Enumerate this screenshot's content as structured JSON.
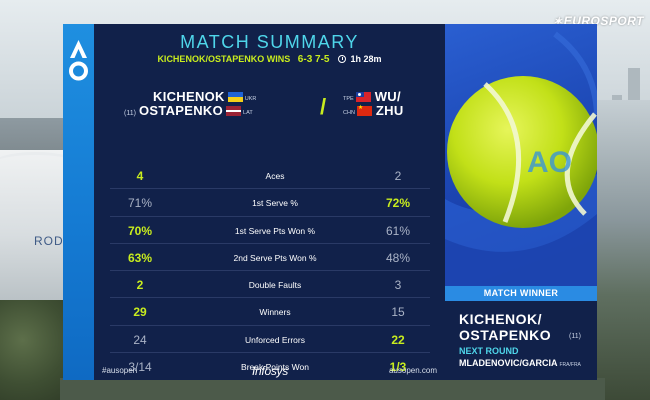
{
  "broadcaster": {
    "logo_text": "EUROSPORT"
  },
  "venue": {
    "arena_sign": "ROD"
  },
  "brand": {
    "event_logo": "AO"
  },
  "summary": {
    "title": "MATCH SUMMARY",
    "result_text": "KICHENOK/OSTAPENKO WINS",
    "score": "6-3  7-5",
    "duration": "1h 28m"
  },
  "teams": {
    "left": {
      "player1": {
        "name": "KICHENOK",
        "country": "UKR"
      },
      "player2": {
        "name": "OSTAPENKO",
        "country": "LAT",
        "seed": "(11)"
      }
    },
    "right": {
      "player1": {
        "name": "WU/",
        "country": "TPE"
      },
      "player2": {
        "name": "ZHU",
        "country": "CHN"
      }
    }
  },
  "stats": [
    {
      "label": "Aces",
      "left": "4",
      "right": "2",
      "winner": "left"
    },
    {
      "label": "1st Serve %",
      "left": "71%",
      "right": "72%",
      "winner": "right"
    },
    {
      "label": "1st Serve Pts Won %",
      "left": "70%",
      "right": "61%",
      "winner": "left"
    },
    {
      "label": "2nd Serve Pts Won %",
      "left": "63%",
      "right": "48%",
      "winner": "left"
    },
    {
      "label": "Double Faults",
      "left": "2",
      "right": "3",
      "winner": "left"
    },
    {
      "label": "Winners",
      "left": "29",
      "right": "15",
      "winner": "left"
    },
    {
      "label": "Unforced Errors",
      "left": "24",
      "right": "22",
      "winner": "right"
    },
    {
      "label": "Break Points Won",
      "left": "3/14",
      "right": "1/3",
      "winner": "right"
    }
  ],
  "footer": {
    "hashtag": "#ausopen",
    "sponsor": "Infosys",
    "site": "ausopen.com"
  },
  "match_winner": {
    "header": "MATCH WINNER",
    "name_line1": "KICHENOK/",
    "name_line2": "OSTAPENKO",
    "seed": "(11)",
    "next_round_label": "NEXT ROUND",
    "next_opponents": "MLADENOVIC/GARCIA",
    "next_opponents_country": "FRA/FRA"
  },
  "colors": {
    "panel_bg": "#11214a",
    "accent_cyan": "#4fd6ea",
    "accent_lime": "#c8ec1e",
    "ao_blue": "#1f8fe0"
  }
}
